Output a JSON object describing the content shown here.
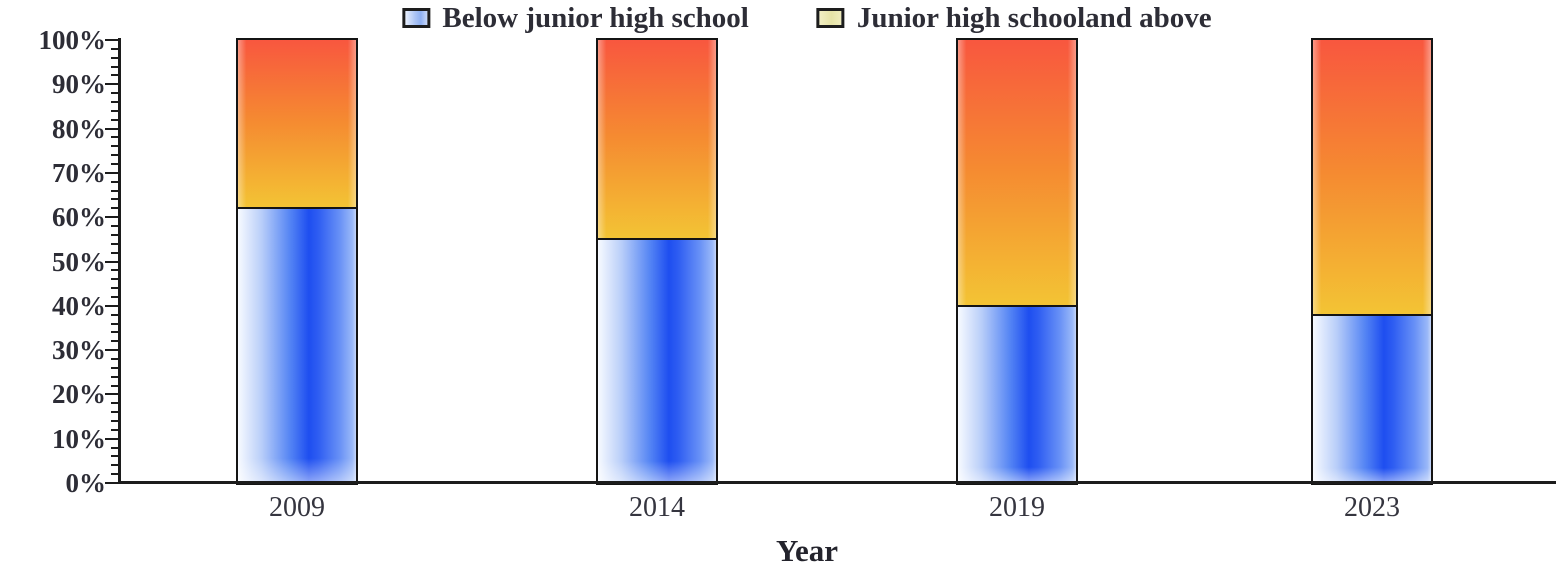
{
  "page": {
    "background": "#ffffff"
  },
  "legend": {
    "items": [
      {
        "label": "Below junior high school",
        "swatch": "blue"
      },
      {
        "label": "Junior high schooland above",
        "swatch": "yellow"
      }
    ]
  },
  "chart_data": {
    "type": "bar",
    "subtype": "stacked-percentage-column",
    "categories": [
      "2009",
      "2014",
      "2019",
      "2023"
    ],
    "series": [
      {
        "name": "Below junior high school",
        "color_key": "blue",
        "values": [
          62,
          55,
          40,
          38
        ]
      },
      {
        "name": "Junior high schooland above",
        "color_key": "orange",
        "values": [
          38,
          45,
          60,
          62
        ]
      }
    ],
    "title": "",
    "xlabel": "Year",
    "ylabel": "",
    "ylim": [
      0,
      100
    ],
    "y_tick_labels": [
      "0%",
      "10%",
      "20%",
      "30%",
      "40%",
      "50%",
      "60%",
      "70%",
      "80%",
      "90%",
      "100%"
    ],
    "y_major_step": 10,
    "y_minor_step": 2,
    "legend_position": "top-center",
    "grid": false
  },
  "colors": {
    "axis": "#1c1c1c",
    "text": "#2d2d36",
    "bar_outline": "#141414",
    "blue_gradient": [
      "#f7faff",
      "#b9cef9",
      "#5585f4",
      "#1e4ef0",
      "#2e5df2",
      "#6790f6",
      "#9ab8f8"
    ],
    "orange_gradient_top": "#f8573f",
    "orange_gradient_mid": "#f58a31",
    "orange_gradient_bottom": "#f3c434",
    "legend_swatch_blue": "#aac3f4",
    "legend_swatch_yellow": "#e6e3a6"
  }
}
